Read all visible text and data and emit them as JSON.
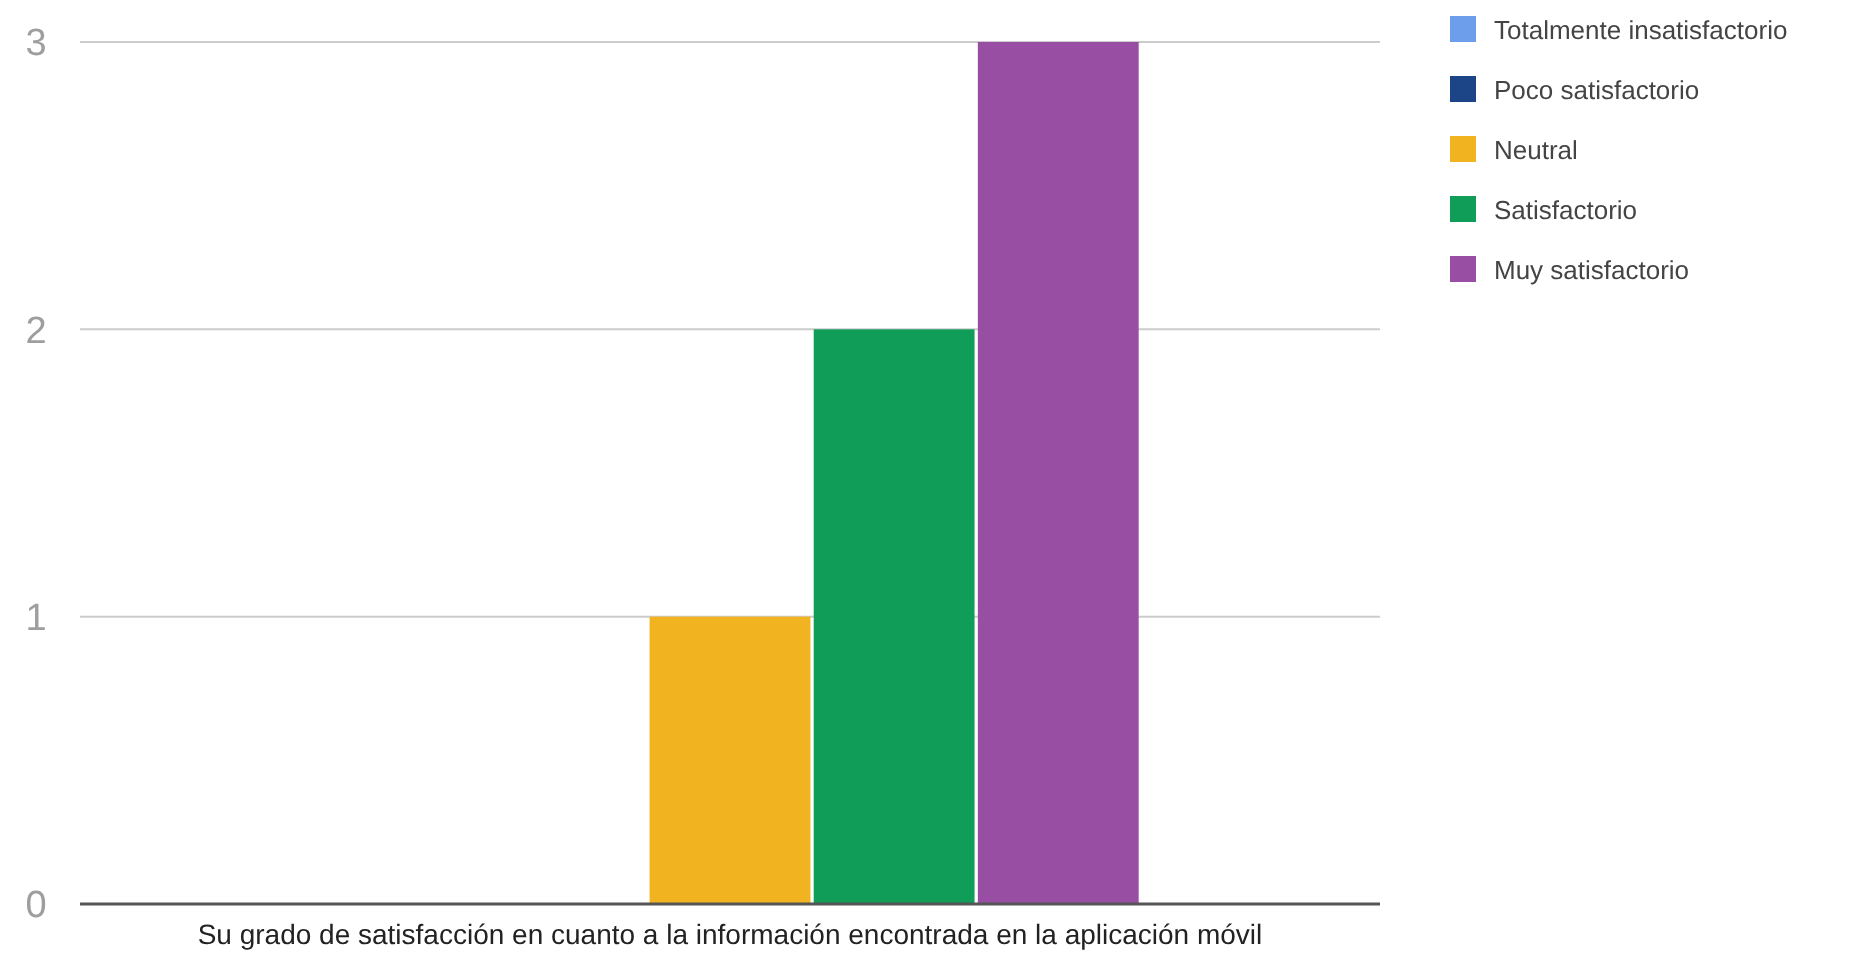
{
  "chart_data": {
    "type": "bar",
    "categories": [
      "Su grado de satisfacción en cuanto a la información encontrada en la aplicación móvil"
    ],
    "series": [
      {
        "name": "Totalmente insatisfactorio",
        "color": "#6d9eeb",
        "values": [
          0
        ]
      },
      {
        "name": "Poco satisfactorio",
        "color": "#1c4587",
        "values": [
          0
        ]
      },
      {
        "name": "Neutral",
        "color": "#f1b320",
        "values": [
          1
        ]
      },
      {
        "name": "Satisfactorio",
        "color": "#0f9d58",
        "values": [
          2
        ]
      },
      {
        "name": "Muy satisfactorio",
        "color": "#984ea3",
        "values": [
          3
        ]
      }
    ],
    "ylim": [
      0,
      3
    ],
    "yticks": [
      0,
      1,
      2,
      3
    ],
    "grid": "y",
    "legend": "top right"
  }
}
